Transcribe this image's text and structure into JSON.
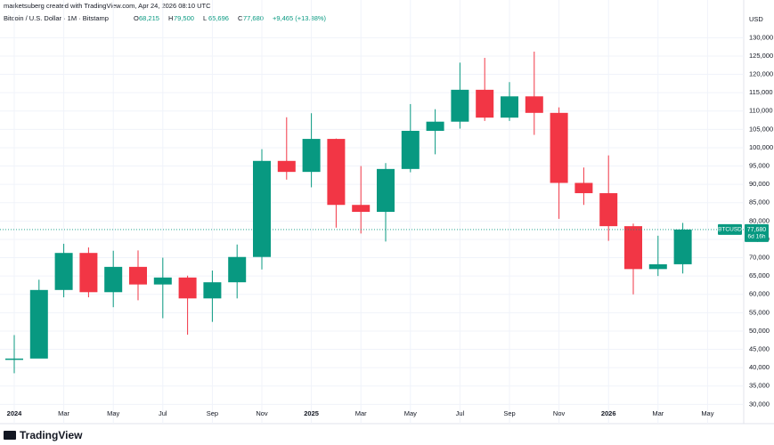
{
  "chart_data": {
    "type": "candlestick",
    "credit": "marketsuberg created with TradingView.com, Apr 24, 2026 08:10 UTC",
    "title": "Bitcoin / U.S. Dollar · 1M · Bitstamp",
    "ohlc_header": [
      {
        "key": "O",
        "text": "68,215"
      },
      {
        "key": "H",
        "text": "79,500"
      },
      {
        "key": "L",
        "text": "65,696"
      },
      {
        "key": "C",
        "text": "77,680"
      }
    ],
    "change": "+9,465 (+13.88%)",
    "currency": "USD",
    "symbol": "BTCUSD",
    "last_price": {
      "value": 77680,
      "label": "77,680"
    },
    "countdown": "6d 16h",
    "brand": "TradingView",
    "x": [
      "2024-01",
      "2024-02",
      "2024-03",
      "2024-04",
      "2024-05",
      "2024-06",
      "2024-07",
      "2024-08",
      "2024-09",
      "2024-10",
      "2024-11",
      "2024-12",
      "2025-01",
      "2025-02",
      "2025-03",
      "2025-04",
      "2025-05",
      "2025-06",
      "2025-07",
      "2025-08",
      "2025-09",
      "2025-10",
      "2025-11",
      "2025-12",
      "2026-01",
      "2026-02",
      "2026-03",
      "2026-04"
    ],
    "open": [
      42300,
      42500,
      61200,
      71300,
      60600,
      67500,
      62700,
      64600,
      58900,
      63300,
      70200,
      96400,
      93400,
      102400,
      84400,
      82500,
      94200,
      104600,
      107100,
      115800,
      108200,
      114000,
      109500,
      90400,
      87600,
      78600,
      66900,
      68215
    ],
    "high": [
      48900,
      64000,
      73800,
      72800,
      71900,
      72000,
      70000,
      65100,
      66500,
      73600,
      99600,
      108300,
      109400,
      102500,
      95000,
      95800,
      111900,
      110500,
      123200,
      124500,
      117900,
      126200,
      111000,
      94600,
      97900,
      79300,
      76000,
      79500
    ],
    "low": [
      38500,
      42800,
      59200,
      59200,
      56500,
      58400,
      53500,
      49000,
      52500,
      58900,
      66800,
      91300,
      89200,
      78200,
      76600,
      74400,
      93300,
      98200,
      105200,
      107300,
      107300,
      103500,
      80600,
      84400,
      74600,
      60000,
      65000,
      65696
    ],
    "close": [
      42500,
      61200,
      71300,
      60600,
      67500,
      62700,
      64600,
      58900,
      63300,
      70200,
      96400,
      93400,
      102400,
      84400,
      82500,
      94200,
      104600,
      107100,
      115800,
      108200,
      114000,
      109500,
      90400,
      87600,
      78600,
      66900,
      68215,
      77680
    ],
    "up_color": "#089981",
    "down_color": "#f23645",
    "ylim": [
      28000,
      133000
    ],
    "yticks": [
      {
        "value": 30000,
        "label": "30,000"
      },
      {
        "value": 35000,
        "label": "35,000"
      },
      {
        "value": 40000,
        "label": "40,000"
      },
      {
        "value": 45000,
        "label": "45,000"
      },
      {
        "value": 50000,
        "label": "50,000"
      },
      {
        "value": 55000,
        "label": "55,000"
      },
      {
        "value": 60000,
        "label": "60,000"
      },
      {
        "value": 65000,
        "label": "65,000"
      },
      {
        "value": 70000,
        "label": "70,000"
      },
      {
        "value": 75000,
        "label": "75,000"
      },
      {
        "value": 80000,
        "label": "80,000"
      },
      {
        "value": 85000,
        "label": "85,000"
      },
      {
        "value": 90000,
        "label": "90,000"
      },
      {
        "value": 95000,
        "label": "95,000"
      },
      {
        "value": 100000,
        "label": "100,000"
      },
      {
        "value": 105000,
        "label": "105,000"
      },
      {
        "value": 110000,
        "label": "110,000"
      },
      {
        "value": 115000,
        "label": "115,000"
      },
      {
        "value": 120000,
        "label": "120,000"
      },
      {
        "value": 125000,
        "label": "125,000"
      },
      {
        "value": 130000,
        "label": "130,000"
      }
    ],
    "xticks": [
      {
        "value": "2024-01",
        "label": "2024"
      },
      {
        "value": "2024-03",
        "label": "Mar"
      },
      {
        "value": "2024-05",
        "label": "May"
      },
      {
        "value": "2024-07",
        "label": "Jul"
      },
      {
        "value": "2024-09",
        "label": "Sep"
      },
      {
        "value": "2024-11",
        "label": "Nov"
      },
      {
        "value": "2025-01",
        "label": "2025"
      },
      {
        "value": "2025-03",
        "label": "Mar"
      },
      {
        "value": "2025-05",
        "label": "May"
      },
      {
        "value": "2025-07",
        "label": "Jul"
      },
      {
        "value": "2025-09",
        "label": "Sep"
      },
      {
        "value": "2025-11",
        "label": "Nov"
      },
      {
        "value": "2026-01",
        "label": "2026"
      },
      {
        "value": "2026-03",
        "label": "Mar"
      },
      {
        "value": "2026-05",
        "label": "May"
      }
    ],
    "grid": true
  }
}
